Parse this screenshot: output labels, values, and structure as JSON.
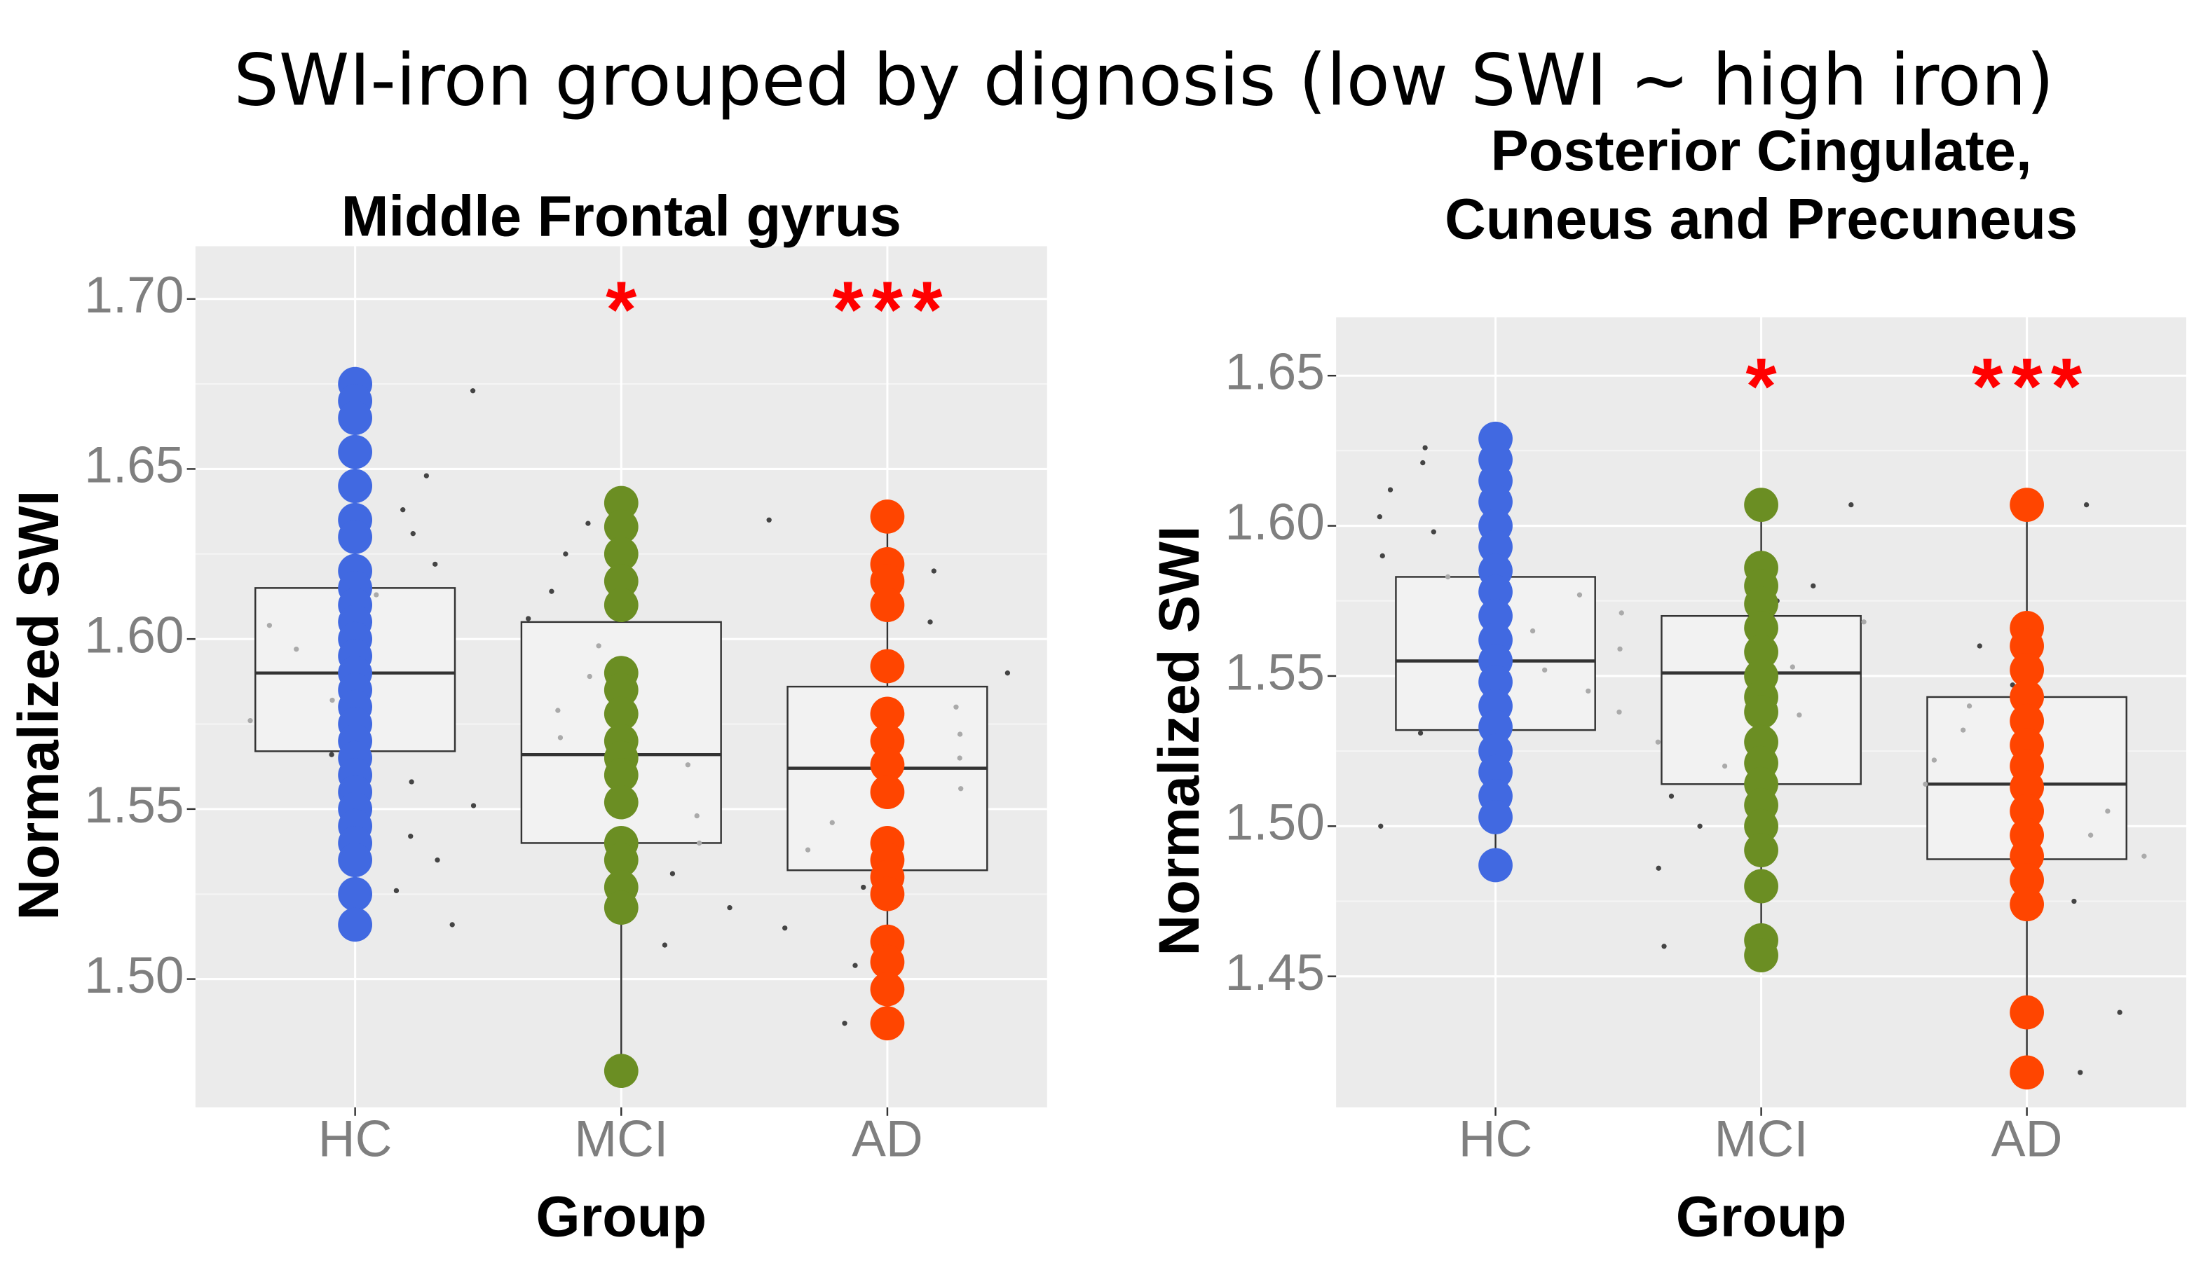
{
  "title": "SWI-iron grouped by dignosis (low SWI ~ high iron)",
  "chart_data": [
    {
      "type": "box",
      "title": "Middle Frontal gyrus",
      "xlabel": "Group",
      "ylabel": "Normalized SWI",
      "categories": [
        "HC",
        "MCI",
        "AD"
      ],
      "significance": [
        null,
        "*",
        "***"
      ],
      "ylim": [
        1.4623,
        1.7155
      ],
      "yticks": [
        {
          "value": 1.5,
          "label": "1.50"
        },
        {
          "value": 1.55,
          "label": "1.55"
        },
        {
          "value": 1.6,
          "label": "1.60"
        },
        {
          "value": 1.65,
          "label": "1.65"
        },
        {
          "value": 1.7,
          "label": "1.70"
        }
      ],
      "grid": true,
      "boxes": [
        {
          "color": "#4169e1",
          "whisker_low": 1.516,
          "q1": 1.567,
          "median": 1.59,
          "q3": 1.615,
          "whisker_high": 1.675,
          "points": [
            1.675,
            1.67,
            1.665,
            1.655,
            1.645,
            1.635,
            1.63,
            1.62,
            1.615,
            1.61,
            1.605,
            1.6,
            1.595,
            1.59,
            1.585,
            1.58,
            1.575,
            1.57,
            1.565,
            1.56,
            1.555,
            1.55,
            1.545,
            1.54,
            1.535,
            1.525,
            1.516
          ],
          "jitter": [
            1.673,
            1.662,
            1.648,
            1.638,
            1.631,
            1.622,
            1.613,
            1.604,
            1.597,
            1.588,
            1.582,
            1.576,
            1.572,
            1.566,
            1.558,
            1.551,
            1.542,
            1.535,
            1.526,
            1.516
          ]
        },
        {
          "color": "#6b8e23",
          "whisker_low": 1.473,
          "q1": 1.54,
          "median": 1.566,
          "q3": 1.605,
          "whisker_high": 1.64,
          "points": [
            1.64,
            1.633,
            1.625,
            1.617,
            1.61,
            1.59,
            1.585,
            1.578,
            1.57,
            1.565,
            1.56,
            1.552,
            1.54,
            1.535,
            1.527,
            1.521,
            1.473
          ],
          "jitter": [
            1.634,
            1.625,
            1.614,
            1.606,
            1.598,
            1.589,
            1.579,
            1.571,
            1.563,
            1.556,
            1.548,
            1.54,
            1.531,
            1.521,
            1.51
          ]
        },
        {
          "color": "#ff4500",
          "whisker_low": 1.487,
          "q1": 1.532,
          "median": 1.562,
          "q3": 1.586,
          "whisker_high": 1.636,
          "points": [
            1.636,
            1.622,
            1.617,
            1.61,
            1.592,
            1.578,
            1.57,
            1.563,
            1.555,
            1.54,
            1.535,
            1.53,
            1.525,
            1.511,
            1.505,
            1.497,
            1.487
          ],
          "jitter": [
            1.635,
            1.62,
            1.605,
            1.59,
            1.58,
            1.572,
            1.565,
            1.556,
            1.546,
            1.538,
            1.533,
            1.527,
            1.515,
            1.504,
            1.487
          ]
        }
      ]
    },
    {
      "type": "box",
      "title": [
        "Posterior Cingulate,",
        "Cuneus and Precuneus"
      ],
      "xlabel": "Group",
      "ylabel": "Normalized SWI",
      "categories": [
        "HC",
        "MCI",
        "AD"
      ],
      "significance": [
        null,
        "*",
        "***"
      ],
      "ylim": [
        1.4064,
        1.6694
      ],
      "yticks": [
        1.45,
        {
          "value": 1.5,
          "label": "1.50"
        },
        1.55,
        {
          "value": 1.6,
          "label": "1.60"
        },
        1.65
      ],
      "grid": true,
      "boxes": [
        {
          "color": "#4169e1",
          "whisker_low": 1.487,
          "q1": 1.532,
          "median": 1.555,
          "q3": 1.583,
          "whisker_high": 1.629,
          "points": [
            1.629,
            1.622,
            1.615,
            1.608,
            1.6,
            1.593,
            1.585,
            1.578,
            1.57,
            1.562,
            1.555,
            1.548,
            1.54,
            1.533,
            1.525,
            1.518,
            1.51,
            1.503,
            1.487
          ],
          "jitter": [
            1.626,
            1.621,
            1.612,
            1.603,
            1.598,
            1.59,
            1.583,
            1.577,
            1.571,
            1.565,
            1.559,
            1.552,
            1.545,
            1.538,
            1.531,
            1.524,
            1.515,
            1.508,
            1.5,
            1.487
          ]
        },
        {
          "color": "#6b8e23",
          "whisker_low": 1.456,
          "q1": 1.514,
          "median": 1.551,
          "q3": 1.57,
          "whisker_high": 1.607,
          "points": [
            1.607,
            1.586,
            1.58,
            1.574,
            1.566,
            1.558,
            1.55,
            1.543,
            1.538,
            1.528,
            1.521,
            1.514,
            1.507,
            1.5,
            1.492,
            1.48,
            1.462,
            1.457
          ],
          "jitter": [
            1.607,
            1.58,
            1.575,
            1.568,
            1.56,
            1.553,
            1.545,
            1.537,
            1.528,
            1.52,
            1.51,
            1.5,
            1.486,
            1.46
          ]
        },
        {
          "color": "#ff4500",
          "whisker_low": 1.418,
          "q1": 1.489,
          "median": 1.514,
          "q3": 1.543,
          "whisker_high": 1.607,
          "points": [
            1.607,
            1.566,
            1.56,
            1.552,
            1.543,
            1.535,
            1.527,
            1.52,
            1.513,
            1.505,
            1.497,
            1.49,
            1.482,
            1.474,
            1.438,
            1.418
          ],
          "jitter": [
            1.607,
            1.56,
            1.553,
            1.547,
            1.54,
            1.532,
            1.522,
            1.514,
            1.505,
            1.497,
            1.49,
            1.475,
            1.438,
            1.418
          ]
        }
      ]
    }
  ]
}
